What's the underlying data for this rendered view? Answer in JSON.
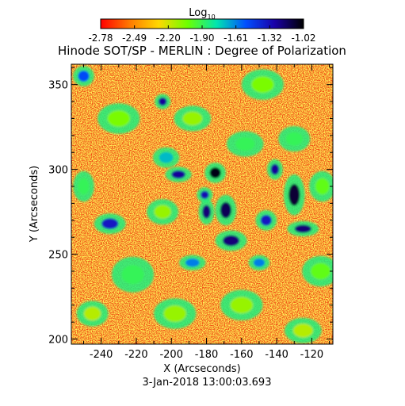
{
  "chart_data": {
    "type": "heatmap",
    "title": "Hinode SOT/SP - MERLIN : Degree of Polarization",
    "xlabel": "X (Arcseconds)",
    "ylabel": "Y (Arcseconds)",
    "footer": "3-Jan-2018 13:00:03.693",
    "xlim": [
      -257,
      -108
    ],
    "ylim": [
      197,
      362
    ],
    "x_ticks": [
      -240,
      -220,
      -200,
      -180,
      -160,
      -140,
      -120
    ],
    "y_ticks": [
      200,
      250,
      300,
      350
    ],
    "colorbar": {
      "title": "Log",
      "title_subscript": "10",
      "range": [
        -2.78,
        -1.02
      ],
      "ticks": [
        "-2.78",
        "-2.49",
        "-2.20",
        "-1.90",
        "-1.61",
        "-1.32",
        "-1.02"
      ],
      "colors": [
        "#ff0000",
        "#ff7a00",
        "#ffd800",
        "#6cff00",
        "#00e6b0",
        "#0050ff",
        "#1a00a8",
        "#000000"
      ]
    },
    "background_level": -2.6,
    "features": [
      {
        "x": -175,
        "y": 298,
        "sx": 4,
        "sy": 4,
        "value": -1.05
      },
      {
        "x": -169,
        "y": 276,
        "sx": 4,
        "sy": 6,
        "value": -1.15
      },
      {
        "x": -180,
        "y": 275,
        "sx": 3,
        "sy": 5,
        "value": -1.2
      },
      {
        "x": -166,
        "y": 258,
        "sx": 6,
        "sy": 4,
        "value": -1.2
      },
      {
        "x": -181,
        "y": 285,
        "sx": 3,
        "sy": 3,
        "value": -1.3
      },
      {
        "x": -130,
        "y": 285,
        "sx": 4,
        "sy": 8,
        "value": -1.1
      },
      {
        "x": -125,
        "y": 265,
        "sx": 6,
        "sy": 3,
        "value": -1.2
      },
      {
        "x": -141,
        "y": 300,
        "sx": 3,
        "sy": 4,
        "value": -1.25
      },
      {
        "x": -146,
        "y": 270,
        "sx": 4,
        "sy": 4,
        "value": -1.35
      },
      {
        "x": -196,
        "y": 297,
        "sx": 5,
        "sy": 3,
        "value": -1.25
      },
      {
        "x": -235,
        "y": 268,
        "sx": 6,
        "sy": 4,
        "value": -1.35
      },
      {
        "x": -205,
        "y": 340,
        "sx": 3,
        "sy": 3,
        "value": -1.25
      },
      {
        "x": -150,
        "y": 245,
        "sx": 4,
        "sy": 3,
        "value": -1.6
      },
      {
        "x": -188,
        "y": 245,
        "sx": 5,
        "sy": 3,
        "value": -1.6
      },
      {
        "x": -203,
        "y": 307,
        "sx": 5,
        "sy": 4,
        "value": -1.7
      },
      {
        "x": -222,
        "y": 238,
        "sx": 8,
        "sy": 7,
        "value": -1.9
      },
      {
        "x": -250,
        "y": 290,
        "sx": 4,
        "sy": 6,
        "value": -1.9
      },
      {
        "x": -158,
        "y": 315,
        "sx": 7,
        "sy": 5,
        "value": -1.9
      },
      {
        "x": -115,
        "y": 240,
        "sx": 7,
        "sy": 6,
        "value": -2.0
      },
      {
        "x": -130,
        "y": 318,
        "sx": 6,
        "sy": 5,
        "value": -1.9
      },
      {
        "x": -230,
        "y": 330,
        "sx": 8,
        "sy": 6,
        "value": -2.05
      },
      {
        "x": -148,
        "y": 350,
        "sx": 8,
        "sy": 6,
        "value": -2.05
      },
      {
        "x": -198,
        "y": 215,
        "sx": 8,
        "sy": 6,
        "value": -2.1
      },
      {
        "x": -160,
        "y": 220,
        "sx": 8,
        "sy": 6,
        "value": -2.1
      },
      {
        "x": -250,
        "y": 355,
        "sx": 4,
        "sy": 4,
        "value": -1.5
      },
      {
        "x": -188,
        "y": 330,
        "sx": 7,
        "sy": 5,
        "value": -2.1
      },
      {
        "x": -245,
        "y": 215,
        "sx": 6,
        "sy": 5,
        "value": -2.15
      },
      {
        "x": -125,
        "y": 205,
        "sx": 7,
        "sy": 5,
        "value": -2.15
      },
      {
        "x": -205,
        "y": 275,
        "sx": 6,
        "sy": 5,
        "value": -2.1
      },
      {
        "x": -114,
        "y": 290,
        "sx": 5,
        "sy": 6,
        "value": -2.0
      }
    ]
  }
}
